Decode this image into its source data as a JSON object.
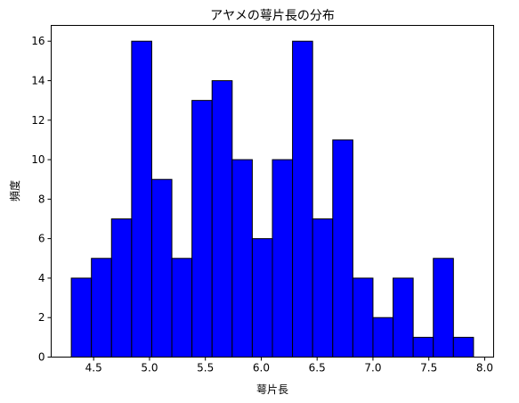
{
  "chart_data": {
    "type": "bar",
    "title": "アヤメの萼片長の分布",
    "xlabel": "萼片長",
    "ylabel": "頻度",
    "bin_edges": [
      4.3,
      4.48,
      4.66,
      4.84,
      5.02,
      5.2,
      5.38,
      5.56,
      5.74,
      5.92,
      6.1,
      6.28,
      6.46,
      6.64,
      6.82,
      7.0,
      7.18,
      7.36,
      7.54,
      7.72,
      7.9
    ],
    "values": [
      4,
      5,
      7,
      16,
      9,
      5,
      13,
      14,
      10,
      6,
      10,
      16,
      7,
      11,
      4,
      2,
      4,
      1,
      5,
      1
    ],
    "xlim": [
      4.12,
      8.08
    ],
    "ylim": [
      0,
      16.8
    ],
    "xticks": [
      4.5,
      5.0,
      5.5,
      6.0,
      6.5,
      7.0,
      7.5,
      8.0
    ],
    "xtick_labels": [
      "4.5",
      "5.0",
      "5.5",
      "6.0",
      "6.5",
      "7.0",
      "7.5",
      "8.0"
    ],
    "yticks": [
      0,
      2,
      4,
      6,
      8,
      10,
      12,
      14,
      16
    ],
    "ytick_labels": [
      "0",
      "2",
      "4",
      "6",
      "8",
      "10",
      "12",
      "14",
      "16"
    ],
    "bar_color": "#0000ff",
    "edge_color": "#000000",
    "grid": false,
    "legend": "none"
  }
}
